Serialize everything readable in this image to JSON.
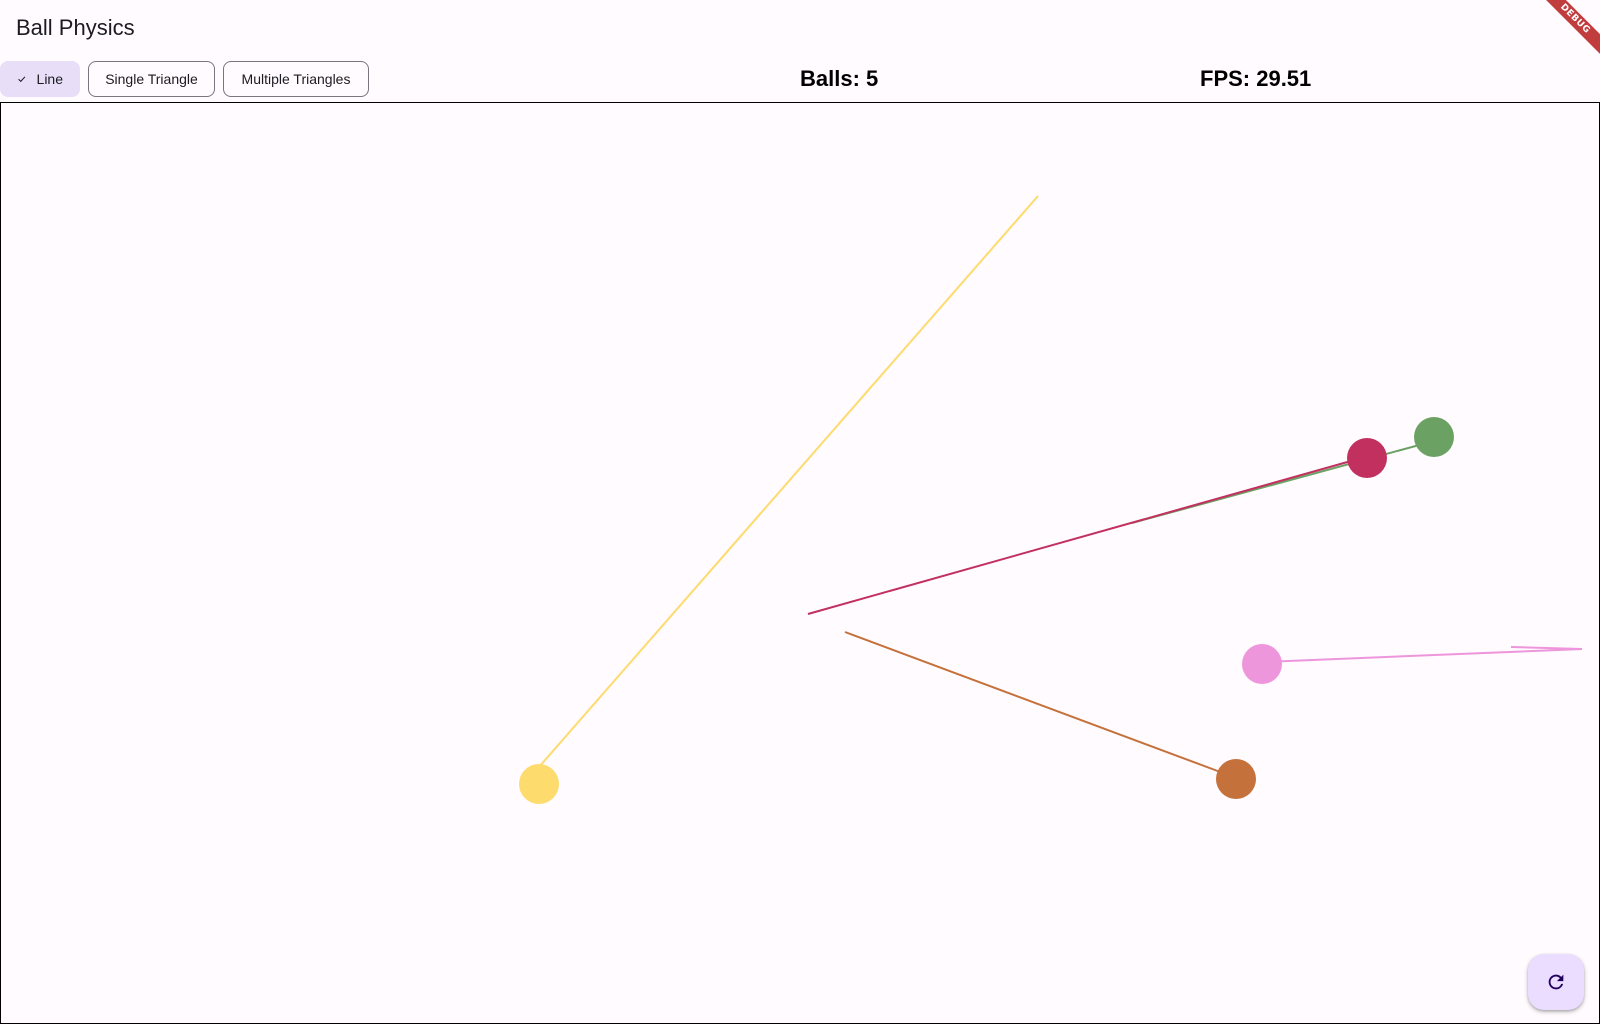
{
  "app": {
    "title": "Ball Physics",
    "debug_banner": "DEBUG"
  },
  "toolbar": {
    "modes": [
      {
        "label": "Line",
        "selected": true
      },
      {
        "label": "Single Triangle",
        "selected": false
      },
      {
        "label": "Multiple Triangles",
        "selected": false
      }
    ],
    "balls_text": "Balls: 5",
    "fps_text": "FPS: 29.51"
  },
  "balls": [
    {
      "name": "yellow",
      "color": "#fddb6d"
    },
    {
      "name": "crimson",
      "color": "#c2305f"
    },
    {
      "name": "green",
      "color": "#6ba264"
    },
    {
      "name": "pink",
      "color": "#ee96dc"
    },
    {
      "name": "orange",
      "color": "#c4713b"
    }
  ],
  "fab": {
    "icon": "refresh-icon"
  }
}
